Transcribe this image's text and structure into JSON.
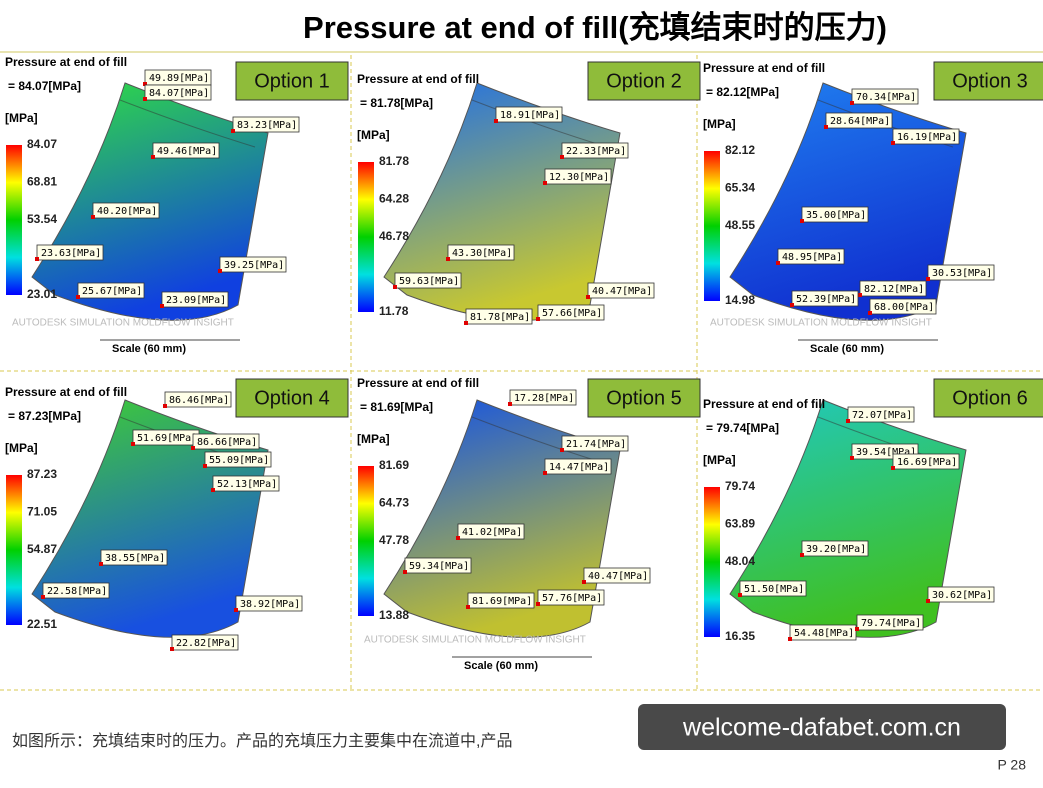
{
  "header": {
    "title": "Pressure at end of fill(充填结束时的压力)"
  },
  "panels": [
    {
      "option": "Option 1",
      "heading": "Pressure at end of fill",
      "max": "= 84.07[MPa]",
      "unit": "[MPa]",
      "scale": [
        "84.07",
        "68.81",
        "53.54",
        "23.01"
      ],
      "callouts": [
        "49.89[MPa]",
        "84.07[MPa]",
        "83.23[MPa]",
        "49.46[MPa]",
        "40.20[MPa]",
        "23.63[MPa]",
        "39.25[MPa]",
        "25.67[MPa]",
        "23.09[MPa]"
      ],
      "brand": "AUTODESK SIMULATION MOLDFLOW INSIGHT",
      "scale_bar": "Scale (60 mm)"
    },
    {
      "option": "Option 2",
      "heading": "Pressure at end of fill",
      "max": "= 81.78[MPa]",
      "unit": "[MPa]",
      "scale": [
        "81.78",
        "64.28",
        "46.78",
        "11.78"
      ],
      "callouts": [
        "18.91[MPa]",
        "22.33[MPa]",
        "12.30[MPa]",
        "43.30[MPa]",
        "59.63[MPa]",
        "40.47[MPa]",
        "81.78[MPa]",
        "57.66[MPa]"
      ]
    },
    {
      "option": "Option 3",
      "heading": "Pressure at end of fill",
      "max": "= 82.12[MPa]",
      "unit": "[MPa]",
      "scale": [
        "82.12",
        "65.34",
        "48.55",
        "14.98"
      ],
      "callouts": [
        "70.34[MPa]",
        "28.64[MPa]",
        "16.19[MPa]",
        "35.00[MPa]",
        "48.95[MPa]",
        "30.53[MPa]",
        "82.12[MPa]",
        "52.39[MPa]",
        "68.00[MPa]"
      ],
      "brand": "AUTODESK SIMULATION MOLDFLOW INSIGHT",
      "scale_bar": "Scale (60 mm)"
    },
    {
      "option": "Option 4",
      "heading": "Pressure at end of fill",
      "max": "= 87.23[MPa]",
      "unit": "[MPa]",
      "scale": [
        "87.23",
        "71.05",
        "54.87",
        "22.51"
      ],
      "callouts": [
        "86.46[MPa]",
        "51.69[MPa]",
        "86.66[MPa]",
        "55.09[MPa]",
        "52.13[MPa]",
        "38.55[MPa]",
        "22.58[MPa]",
        "38.92[MPa]",
        "22.82[MPa]"
      ]
    },
    {
      "option": "Option 5",
      "heading": "Pressure at end of fill",
      "max": "= 81.69[MPa]",
      "unit": "[MPa]",
      "scale": [
        "81.69",
        "64.73",
        "47.78",
        "13.88"
      ],
      "callouts": [
        "17.28[MPa]",
        "21.74[MPa]",
        "14.47[MPa]",
        "41.02[MPa]",
        "59.34[MPa]",
        "40.47[MPa]",
        "81.69[MPa]",
        "57.76[MPa]"
      ],
      "brand": "AUTODESK SIMULATION MOLDFLOW INSIGHT",
      "scale_bar": "Scale (60 mm)"
    },
    {
      "option": "Option 6",
      "heading": "Pressure at end of fill",
      "max": "= 79.74[MPa]",
      "unit": "[MPa]",
      "scale": [
        "79.74",
        "63.89",
        "48.04",
        "16.35"
      ],
      "callouts": [
        "72.07[MPa]",
        "39.54[MPa]",
        "16.69[MPa]",
        "39.20[MPa]",
        "51.50[MPa]",
        "30.62[MPa]",
        "54.48[MPa]",
        "79.74[MPa]"
      ]
    }
  ],
  "footer": {
    "note": "如图所示：充填结束时的压力。产品的充填压力主要集中在流道中,产品",
    "watermark": "welcome-dafabet.com.cn",
    "page": "P 28"
  }
}
